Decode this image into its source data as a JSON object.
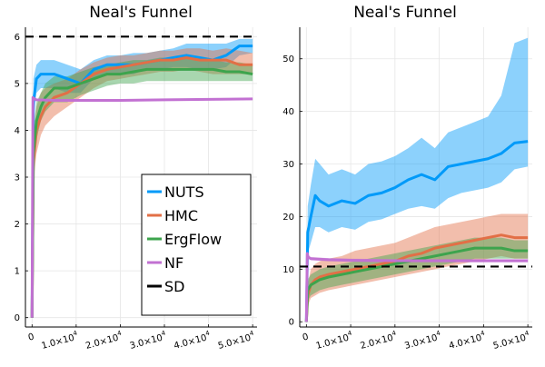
{
  "chart_data": [
    {
      "type": "line",
      "title": "Neal's Funnel",
      "xlabel": "",
      "ylabel": "",
      "xlim": [
        -1500,
        51000
      ],
      "ylim": [
        -0.2,
        6.2
      ],
      "y_ticks": [
        "0",
        "1",
        "2",
        "3",
        "4",
        "5",
        "6"
      ],
      "y_tick_values": [
        0,
        1,
        2,
        3,
        4,
        5,
        6
      ],
      "x_ticks": [
        "0",
        "1.0×10",
        "2.0×10",
        "3.0×10",
        "4.0×10",
        "5.0×10"
      ],
      "x_tick_values": [
        0,
        10000,
        20000,
        30000,
        40000,
        50000
      ],
      "x_tick_exponent": "4",
      "grid": true,
      "legend": "bottom-right",
      "reference_line": {
        "name": "SD",
        "y": 6.0,
        "color": "#000000",
        "style": "dashed"
      },
      "series": [
        {
          "name": "NUTS",
          "color": "#009af9",
          "x": [
            0,
            300,
            1000,
            2000,
            3000,
            5000,
            8000,
            11000,
            14000,
            17000,
            20000,
            23000,
            26000,
            29000,
            32000,
            35000,
            38000,
            41000,
            44000,
            47000,
            50000
          ],
          "y": [
            0,
            4.6,
            5.1,
            5.2,
            5.2,
            5.2,
            5.1,
            5.0,
            5.3,
            5.4,
            5.4,
            5.4,
            5.45,
            5.5,
            5.55,
            5.6,
            5.55,
            5.5,
            5.6,
            5.8,
            5.8
          ],
          "lower": [
            0,
            4.2,
            4.8,
            4.9,
            4.9,
            4.9,
            4.8,
            4.8,
            5.1,
            5.2,
            5.2,
            5.2,
            5.3,
            5.3,
            5.35,
            5.35,
            5.3,
            5.3,
            5.35,
            5.6,
            5.65
          ],
          "upper": [
            0,
            5.1,
            5.4,
            5.5,
            5.5,
            5.5,
            5.4,
            5.3,
            5.5,
            5.6,
            5.6,
            5.65,
            5.65,
            5.7,
            5.75,
            5.85,
            5.85,
            5.85,
            5.85,
            5.95,
            5.95
          ]
        },
        {
          "name": "HMC",
          "color": "#e26f46",
          "x": [
            0,
            300,
            1000,
            2000,
            3000,
            5000,
            8000,
            11000,
            14000,
            17000,
            20000,
            23000,
            26000,
            29000,
            32000,
            35000,
            38000,
            41000,
            44000,
            47000,
            50000
          ],
          "y": [
            0,
            3.3,
            4.0,
            4.3,
            4.5,
            4.7,
            4.8,
            5.0,
            5.2,
            5.3,
            5.35,
            5.4,
            5.45,
            5.5,
            5.5,
            5.55,
            5.5,
            5.5,
            5.5,
            5.4,
            5.4
          ],
          "lower": [
            0,
            2.9,
            3.5,
            3.9,
            4.1,
            4.3,
            4.5,
            4.7,
            4.9,
            5.05,
            5.1,
            5.15,
            5.2,
            5.25,
            5.25,
            5.3,
            5.25,
            5.2,
            5.2,
            5.2,
            5.2
          ],
          "upper": [
            0,
            3.8,
            4.5,
            4.8,
            4.9,
            5.0,
            5.1,
            5.3,
            5.45,
            5.55,
            5.6,
            5.6,
            5.65,
            5.7,
            5.7,
            5.75,
            5.75,
            5.7,
            5.75,
            5.7,
            5.65
          ]
        },
        {
          "name": "ErgFlow",
          "color": "#3da44d",
          "x": [
            0,
            300,
            1000,
            2000,
            3000,
            5000,
            8000,
            11000,
            14000,
            17000,
            20000,
            23000,
            26000,
            29000,
            32000,
            35000,
            38000,
            41000,
            44000,
            47000,
            50000
          ],
          "y": [
            0,
            3.5,
            4.2,
            4.5,
            4.7,
            4.9,
            4.9,
            5.0,
            5.1,
            5.2,
            5.2,
            5.25,
            5.3,
            5.3,
            5.3,
            5.3,
            5.3,
            5.3,
            5.25,
            5.25,
            5.2
          ],
          "lower": [
            0,
            3.1,
            3.8,
            4.2,
            4.4,
            4.6,
            4.6,
            4.75,
            4.85,
            4.95,
            5.0,
            5.0,
            5.05,
            5.05,
            5.05,
            5.05,
            5.05,
            5.05,
            5.05,
            5.05,
            5.05
          ],
          "upper": [
            0,
            4.0,
            4.6,
            4.8,
            5.0,
            5.15,
            5.15,
            5.25,
            5.35,
            5.4,
            5.45,
            5.5,
            5.5,
            5.55,
            5.55,
            5.55,
            5.55,
            5.5,
            5.45,
            5.45,
            5.4
          ]
        },
        {
          "name": "NF",
          "color": "#c271d2",
          "x": [
            0,
            200,
            400,
            1000,
            5000,
            10000,
            20000,
            30000,
            40000,
            50000
          ],
          "y": [
            0,
            4.7,
            4.68,
            4.65,
            4.64,
            4.64,
            4.64,
            4.65,
            4.66,
            4.67
          ],
          "lower": [
            0,
            4.68,
            4.66,
            4.63,
            4.62,
            4.62,
            4.62,
            4.63,
            4.64,
            4.65
          ],
          "upper": [
            0,
            4.72,
            4.7,
            4.67,
            4.66,
            4.66,
            4.66,
            4.67,
            4.68,
            4.69
          ]
        }
      ]
    },
    {
      "type": "line",
      "title": "Neal's Funnel",
      "xlabel": "",
      "ylabel": "",
      "xlim": [
        -1500,
        51000
      ],
      "ylim": [
        -1,
        56
      ],
      "y_ticks": [
        "0",
        "10",
        "20",
        "30",
        "40",
        "50"
      ],
      "y_tick_values": [
        0,
        10,
        20,
        30,
        40,
        50
      ],
      "x_ticks": [
        "1.0×10",
        "2.0×10",
        "3.0×10",
        "4.0×10",
        "5.0×10"
      ],
      "x_tick_values": [
        10000,
        20000,
        30000,
        40000,
        50000
      ],
      "x_tick_zero_label": "0",
      "x_tick_exponent": "4",
      "grid": true,
      "reference_line": {
        "name": "SD",
        "y": 10.5,
        "color": "#000000",
        "style": "dashed"
      },
      "series": [
        {
          "name": "NUTS",
          "color": "#009af9",
          "x": [
            0,
            300,
            1000,
            2000,
            3000,
            5000,
            8000,
            11000,
            14000,
            17000,
            20000,
            23000,
            26000,
            29000,
            32000,
            35000,
            38000,
            41000,
            44000,
            47000,
            50000
          ],
          "y": [
            0,
            17,
            20,
            24,
            23,
            22,
            23,
            22.5,
            24,
            24.5,
            25.5,
            27,
            28,
            27,
            29.5,
            30,
            30.5,
            31,
            32,
            34,
            34.3
          ],
          "lower": [
            0,
            13,
            15,
            18,
            18,
            17,
            18,
            17.5,
            19,
            19.5,
            20.5,
            21.5,
            22,
            21.5,
            23.5,
            24.5,
            25,
            25.5,
            26.5,
            29,
            29.5
          ],
          "upper": [
            0,
            22,
            26,
            31,
            30,
            28,
            29,
            28,
            30,
            30.5,
            31.5,
            33,
            35,
            33,
            36,
            37,
            38,
            39,
            43,
            53,
            54
          ]
        },
        {
          "name": "HMC",
          "color": "#e26f46",
          "x": [
            0,
            300,
            1000,
            2000,
            3000,
            5000,
            8000,
            11000,
            14000,
            17000,
            20000,
            23000,
            26000,
            29000,
            32000,
            35000,
            38000,
            41000,
            44000,
            47000,
            50000
          ],
          "y": [
            0,
            5,
            7,
            8,
            8.5,
            9,
            9.5,
            10,
            10.5,
            11,
            11.5,
            12.5,
            13,
            14,
            14.5,
            15,
            15.5,
            16,
            16.5,
            16,
            16
          ],
          "lower": [
            0,
            3,
            4.5,
            5,
            5.5,
            6,
            6.5,
            7,
            7.5,
            8,
            8.5,
            9,
            9.5,
            10,
            10.5,
            11,
            11.5,
            12,
            12.5,
            12,
            12
          ],
          "upper": [
            0,
            7,
            10,
            11,
            11.5,
            12,
            12.5,
            13.5,
            14,
            14.5,
            15,
            16,
            17,
            18,
            18.5,
            19,
            19.5,
            20,
            20.5,
            20.5,
            20.5
          ]
        },
        {
          "name": "ErgFlow",
          "color": "#3da44d",
          "x": [
            0,
            300,
            1000,
            2000,
            3000,
            5000,
            8000,
            11000,
            14000,
            17000,
            20000,
            23000,
            26000,
            29000,
            32000,
            35000,
            38000,
            41000,
            44000,
            47000,
            50000
          ],
          "y": [
            0,
            6,
            7,
            7.5,
            8,
            8.5,
            9,
            9.5,
            10,
            10.5,
            11,
            11.5,
            12,
            12.5,
            13,
            13.5,
            14,
            14,
            14,
            13.5,
            13.5
          ],
          "lower": [
            0,
            4,
            5,
            5.5,
            6,
            6.5,
            7,
            7.5,
            8,
            8.5,
            9,
            9.5,
            10,
            10.5,
            11,
            11.5,
            12,
            12,
            12,
            12,
            12
          ],
          "upper": [
            0,
            8,
            9,
            9.5,
            10,
            10.5,
            11,
            11.5,
            12,
            12.5,
            13,
            13.5,
            14,
            14.5,
            15,
            15.5,
            16,
            16,
            16,
            15.5,
            15.5
          ]
        },
        {
          "name": "NF",
          "color": "#c271d2",
          "x": [
            0,
            200,
            400,
            1000,
            5000,
            10000,
            20000,
            30000,
            40000,
            50000
          ],
          "y": [
            0,
            13,
            12.3,
            12,
            11.8,
            11.7,
            11.6,
            11.6,
            11.6,
            11.6
          ],
          "lower": [
            0,
            12.6,
            12,
            11.7,
            11.5,
            11.4,
            11.3,
            11.3,
            11.3,
            11.3
          ],
          "upper": [
            0,
            13.4,
            12.6,
            12.3,
            12.1,
            12.0,
            11.9,
            11.9,
            11.9,
            11.9
          ]
        }
      ]
    }
  ]
}
